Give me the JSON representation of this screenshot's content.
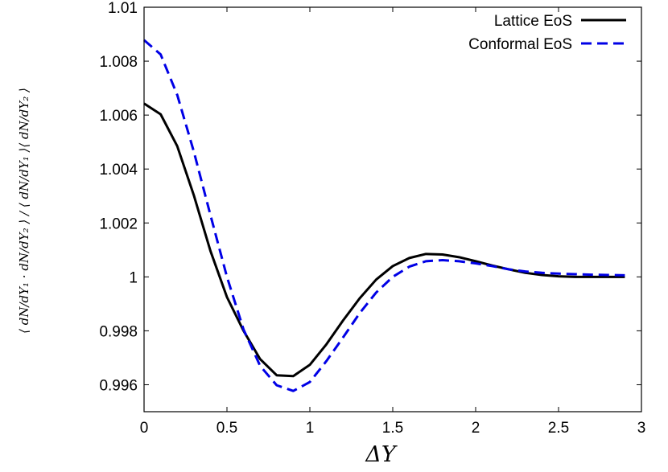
{
  "chart_data": {
    "type": "line",
    "xlabel": "ΔY",
    "ylabel": "⟨ dN/dY₁ · dN/dY₂ ⟩ / ⟨ dN/dY₁ ⟩⟨ dN/dY₂ ⟩",
    "xlim": [
      0,
      3
    ],
    "ylim": [
      0.995,
      1.01
    ],
    "xticks": [
      0,
      0.5,
      1,
      1.5,
      2,
      2.5,
      3
    ],
    "xtick_labels": [
      "0",
      "0.5",
      "1",
      "1.5",
      "2",
      "2.5",
      "3"
    ],
    "yticks": [
      0.996,
      0.998,
      1,
      1.002,
      1.004,
      1.006,
      1.008,
      1.01
    ],
    "ytick_labels": [
      "0.996",
      "0.998",
      "1",
      "1.002",
      "1.004",
      "1.006",
      "1.008",
      "1.01"
    ],
    "grid": false,
    "legend_position": "top-right",
    "series": [
      {
        "name": "Lattice EoS",
        "color": "#000000",
        "style": "solid",
        "x": [
          0,
          0.1,
          0.2,
          0.3,
          0.4,
          0.5,
          0.6,
          0.7,
          0.8,
          0.9,
          1.0,
          1.1,
          1.2,
          1.3,
          1.4,
          1.5,
          1.6,
          1.7,
          1.8,
          1.9,
          2.0,
          2.1,
          2.2,
          2.3,
          2.4,
          2.5,
          2.6,
          2.7,
          2.8,
          2.9
        ],
        "y": [
          1.00643,
          1.00603,
          1.00485,
          1.00303,
          1.00097,
          0.99925,
          0.998,
          0.99695,
          0.99635,
          0.99632,
          0.99674,
          0.9975,
          0.99838,
          0.9992,
          0.9999,
          1.0004,
          1.0007,
          1.00085,
          1.00083,
          1.00073,
          1.00058,
          1.00042,
          1.00028,
          1.00015,
          1.00007,
          1.00002,
          1.0,
          1.0,
          1.0,
          1.0
        ]
      },
      {
        "name": "Conformal EoS",
        "color": "#0000e6",
        "style": "dashed",
        "x": [
          0,
          0.1,
          0.2,
          0.3,
          0.4,
          0.5,
          0.6,
          0.7,
          0.8,
          0.9,
          1.0,
          1.1,
          1.2,
          1.3,
          1.4,
          1.5,
          1.6,
          1.7,
          1.8,
          1.9,
          2.0,
          2.1,
          2.2,
          2.3,
          2.4,
          2.5,
          2.6,
          2.7,
          2.8,
          2.9
        ],
        "y": [
          1.00878,
          1.00825,
          1.00675,
          1.00465,
          1.0023,
          1.0,
          0.99805,
          0.9967,
          0.99598,
          0.99577,
          0.9961,
          0.99688,
          0.99775,
          0.99865,
          0.99942,
          1.0,
          1.00038,
          1.00058,
          1.00062,
          1.00058,
          1.0005,
          1.0004,
          1.00028,
          1.0002,
          1.00015,
          1.00012,
          1.0001,
          1.00008,
          1.00007,
          1.00006
        ]
      }
    ]
  }
}
